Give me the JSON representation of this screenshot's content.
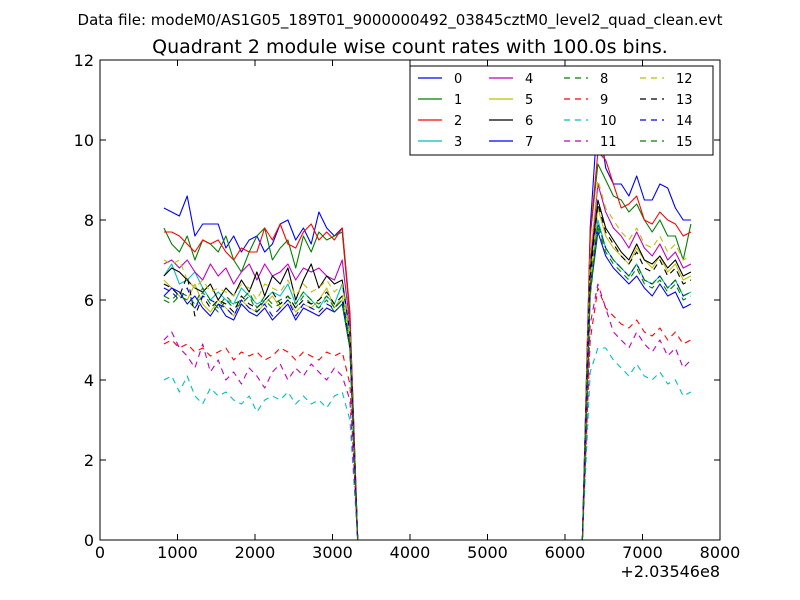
{
  "figure": {
    "supertitle": "Data file: modeM0/AS1G05_189T01_9000000492_03845cztM0_level2_quad_clean.evt"
  },
  "chart_data": {
    "type": "line",
    "title": "Quadrant 2 module wise count rates with 100.0s bins.",
    "xlabel": "",
    "ylabel": "",
    "xlim": [
      0,
      8000
    ],
    "ylim": [
      0,
      12
    ],
    "xticks": [
      0,
      1000,
      2000,
      3000,
      4000,
      5000,
      6000,
      7000,
      8000
    ],
    "xtick_labels": [
      "0",
      "1000",
      "2000",
      "3000",
      "4000",
      "5000",
      "6000",
      "7000",
      "8000"
    ],
    "yticks": [
      0,
      2,
      4,
      6,
      8,
      10,
      12
    ],
    "ytick_labels": [
      "0",
      "2",
      "4",
      "6",
      "8",
      "10",
      "12"
    ],
    "x_offset_label": "+2.03546e8",
    "legend_position": "top-right",
    "x_active_1": [
      825,
      925,
      1025,
      1125,
      1225,
      1325,
      1425,
      1525,
      1625,
      1725,
      1825,
      1925,
      2025,
      2125,
      2225,
      2325,
      2425,
      2525,
      2625,
      2725,
      2825,
      2925,
      3025,
      3125,
      3225,
      3325
    ],
    "x_gap": [
      3425,
      6125
    ],
    "x_active_2": [
      6225,
      6325,
      6425,
      6525,
      6625,
      6725,
      6825,
      6925,
      7025,
      7125,
      7225,
      7325,
      7425,
      7525,
      7625
    ],
    "series": [
      {
        "name": "0",
        "color": "#0000ff",
        "dash": "solid",
        "seg1": [
          8.3,
          8.2,
          8.1,
          8.6,
          7.6,
          7.9,
          7.9,
          7.9,
          7.3,
          7.6,
          7.2,
          7.5,
          7.6,
          7.2,
          7.4,
          7.9,
          8.0,
          7.5,
          7.8,
          7.4,
          8.2,
          7.8,
          7.6,
          7.8,
          5.6,
          0.0
        ],
        "seg2": [
          0.0,
          7.8,
          10.7,
          9.3,
          8.9,
          8.9,
          8.6,
          9.1,
          8.5,
          8.5,
          8.9,
          8.8,
          8.3,
          8.0,
          8.0
        ]
      },
      {
        "name": "1",
        "color": "#008000",
        "dash": "solid",
        "seg1": [
          7.8,
          7.4,
          7.2,
          7.6,
          7.0,
          7.5,
          7.4,
          7.2,
          7.6,
          7.0,
          6.7,
          7.2,
          7.6,
          7.8,
          7.0,
          7.3,
          7.5,
          6.8,
          7.6,
          7.2,
          7.7,
          7.5,
          7.6,
          7.7,
          5.6,
          0.0
        ],
        "seg2": [
          0.0,
          7.6,
          9.4,
          9.0,
          8.6,
          8.5,
          8.2,
          8.4,
          8.0,
          7.7,
          8.0,
          7.6,
          7.6,
          7.0,
          7.9
        ]
      },
      {
        "name": "2",
        "color": "#ff0000",
        "dash": "solid",
        "seg1": [
          7.7,
          7.7,
          7.6,
          7.4,
          7.2,
          7.5,
          7.4,
          7.5,
          7.2,
          7.0,
          7.3,
          7.2,
          7.2,
          7.8,
          7.5,
          7.9,
          7.4,
          7.3,
          7.7,
          7.9,
          7.5,
          7.7,
          7.5,
          7.8,
          5.7,
          0.0
        ],
        "seg2": [
          0.0,
          7.6,
          9.7,
          9.5,
          8.9,
          8.3,
          8.4,
          8.6,
          8.0,
          7.9,
          8.2,
          8.0,
          7.9,
          7.6,
          7.7
        ]
      },
      {
        "name": "3",
        "color": "#00bfbf",
        "dash": "solid",
        "seg1": [
          6.6,
          6.9,
          6.4,
          6.5,
          6.7,
          6.3,
          6.0,
          6.2,
          6.0,
          5.9,
          6.3,
          6.1,
          5.9,
          6.0,
          6.2,
          6.1,
          6.4,
          5.9,
          6.2,
          6.0,
          5.8,
          6.1,
          5.9,
          6.4,
          5.1,
          0.0
        ],
        "seg2": [
          0.0,
          6.5,
          8.0,
          7.3,
          7.0,
          6.8,
          6.6,
          6.9,
          6.5,
          6.4,
          6.6,
          6.3,
          6.5,
          6.1,
          6.2
        ]
      },
      {
        "name": "4",
        "color": "#bf00bf",
        "dash": "solid",
        "seg1": [
          6.9,
          7.0,
          6.8,
          7.0,
          6.7,
          6.5,
          6.9,
          6.6,
          6.8,
          6.4,
          6.7,
          6.9,
          6.5,
          6.9,
          6.6,
          6.7,
          6.9,
          6.5,
          6.8,
          6.7,
          6.8,
          6.6,
          6.5,
          7.0,
          5.4,
          0.0
        ],
        "seg2": [
          0.0,
          6.9,
          8.9,
          8.2,
          7.8,
          7.6,
          7.3,
          7.7,
          7.3,
          7.1,
          7.4,
          7.0,
          7.2,
          6.8,
          6.9
        ]
      },
      {
        "name": "5",
        "color": "#bfbf00",
        "dash": "solid",
        "seg1": [
          6.5,
          6.3,
          6.1,
          6.0,
          6.4,
          5.9,
          5.7,
          6.0,
          5.8,
          5.6,
          6.0,
          5.8,
          5.7,
          5.9,
          6.1,
          5.8,
          6.0,
          5.7,
          5.9,
          5.8,
          6.0,
          6.3,
          5.8,
          6.1,
          4.9,
          0.0
        ],
        "seg2": [
          0.0,
          6.4,
          8.3,
          7.6,
          7.3,
          7.1,
          6.9,
          7.3,
          7.0,
          6.8,
          7.1,
          6.7,
          6.9,
          6.5,
          6.6
        ]
      },
      {
        "name": "6",
        "color": "#000000",
        "dash": "solid",
        "seg1": [
          6.6,
          6.8,
          6.7,
          6.5,
          6.3,
          6.2,
          6.4,
          6.0,
          6.3,
          6.1,
          6.5,
          6.2,
          6.7,
          6.1,
          6.6,
          6.4,
          6.8,
          6.0,
          6.5,
          6.9,
          6.3,
          6.6,
          6.4,
          6.5,
          5.2,
          0.0
        ],
        "seg2": [
          0.0,
          6.8,
          8.5,
          7.8,
          7.5,
          7.2,
          7.0,
          7.4,
          7.0,
          6.9,
          7.1,
          6.8,
          7.0,
          6.6,
          6.7
        ]
      },
      {
        "name": "7",
        "color": "#0000ff",
        "dash": "solid",
        "seg1": [
          6.1,
          6.3,
          6.2,
          5.9,
          6.1,
          5.8,
          5.6,
          5.9,
          5.6,
          5.5,
          5.9,
          5.7,
          5.6,
          5.8,
          5.5,
          5.7,
          5.9,
          5.5,
          5.8,
          5.7,
          5.6,
          5.8,
          5.7,
          5.9,
          4.8,
          0.0
        ],
        "seg2": [
          0.0,
          6.2,
          7.7,
          7.1,
          6.8,
          6.6,
          6.4,
          6.6,
          6.3,
          6.1,
          6.4,
          6.1,
          6.2,
          5.8,
          5.9
        ]
      },
      {
        "name": "8",
        "color": "#008000",
        "dash": "dash",
        "seg1": [
          6.0,
          5.9,
          6.1,
          6.0,
          5.8,
          6.2,
          5.9,
          5.7,
          6.0,
          5.8,
          5.9,
          6.1,
          5.7,
          6.0,
          5.8,
          5.9,
          6.0,
          5.8,
          6.1,
          5.9,
          5.8,
          6.0,
          5.7,
          5.9,
          4.8,
          0.0
        ],
        "seg2": [
          0.0,
          6.1,
          7.8,
          7.2,
          6.9,
          6.7,
          6.5,
          6.8,
          6.4,
          6.3,
          6.5,
          6.2,
          6.4,
          6.0,
          6.1
        ]
      },
      {
        "name": "9",
        "color": "#ff0000",
        "dash": "dash",
        "seg1": [
          4.9,
          5.0,
          4.8,
          4.9,
          4.7,
          4.8,
          4.6,
          4.7,
          4.8,
          4.5,
          4.7,
          4.6,
          4.7,
          4.5,
          4.6,
          4.8,
          4.7,
          4.5,
          4.7,
          4.6,
          4.5,
          4.7,
          4.6,
          4.7,
          3.9,
          0.0
        ],
        "seg2": [
          0.0,
          5.0,
          6.3,
          5.8,
          5.6,
          5.4,
          5.3,
          5.5,
          5.2,
          5.1,
          5.3,
          5.0,
          5.2,
          4.9,
          5.0
        ]
      },
      {
        "name": "10",
        "color": "#00bfbf",
        "dash": "dash",
        "seg1": [
          4.0,
          4.1,
          3.7,
          4.1,
          3.6,
          3.4,
          3.8,
          3.6,
          3.7,
          3.5,
          3.4,
          3.6,
          3.2,
          3.5,
          3.6,
          3.5,
          3.7,
          3.4,
          3.6,
          3.4,
          3.5,
          3.3,
          3.6,
          3.7,
          3.0,
          0.0
        ],
        "seg2": [
          0.0,
          4.2,
          4.8,
          4.8,
          4.5,
          4.3,
          4.1,
          4.4,
          4.1,
          4.0,
          4.2,
          3.9,
          4.0,
          3.6,
          3.7
        ]
      },
      {
        "name": "11",
        "color": "#bf00bf",
        "dash": "dash",
        "seg1": [
          5.0,
          5.2,
          4.8,
          4.6,
          4.3,
          4.9,
          4.2,
          4.5,
          4.0,
          4.2,
          3.9,
          4.3,
          4.1,
          3.8,
          4.2,
          4.4,
          4.0,
          4.3,
          4.1,
          4.4,
          4.2,
          4.0,
          4.3,
          4.1,
          3.5,
          0.0
        ],
        "seg2": [
          0.0,
          5.4,
          6.4,
          5.8,
          5.2,
          5.0,
          4.8,
          5.2,
          4.9,
          4.7,
          5.0,
          4.6,
          4.8,
          4.3,
          4.5
        ]
      },
      {
        "name": "12",
        "color": "#bfbf00",
        "dash": "dash",
        "seg1": [
          7.0,
          6.9,
          7.0,
          6.5,
          6.3,
          6.5,
          6.2,
          6.3,
          6.2,
          6.1,
          6.4,
          6.3,
          6.0,
          6.4,
          6.3,
          6.2,
          6.5,
          6.1,
          6.4,
          6.2,
          6.3,
          6.5,
          6.2,
          6.4,
          5.2,
          0.0
        ],
        "seg2": [
          0.0,
          7.1,
          9.0,
          8.3,
          8.0,
          7.7,
          7.5,
          7.8,
          7.4,
          7.3,
          7.6,
          7.2,
          7.4,
          7.0,
          7.1
        ]
      },
      {
        "name": "13",
        "color": "#000000",
        "dash": "dash",
        "seg1": [
          6.4,
          6.3,
          6.1,
          6.6,
          5.6,
          6.1,
          5.8,
          6.0,
          5.9,
          5.7,
          6.1,
          5.9,
          5.8,
          6.0,
          6.2,
          5.9,
          6.1,
          5.8,
          6.0,
          5.9,
          6.0,
          6.2,
          5.9,
          6.1,
          4.9,
          0.0
        ],
        "seg2": [
          0.0,
          6.6,
          8.4,
          7.7,
          7.4,
          7.1,
          6.9,
          7.2,
          6.8,
          6.7,
          7.0,
          6.6,
          6.8,
          6.4,
          6.5
        ]
      },
      {
        "name": "14",
        "color": "#0000ff",
        "dash": "dash",
        "seg1": [
          6.3,
          6.2,
          6.0,
          6.3,
          5.8,
          6.1,
          6.0,
          5.9,
          5.8,
          5.6,
          6.0,
          5.8,
          5.7,
          5.9,
          5.6,
          5.8,
          6.0,
          5.6,
          5.9,
          5.8,
          5.7,
          5.9,
          5.8,
          6.0,
          4.8,
          0.0
        ],
        "seg2": [
          0.0,
          6.3,
          7.9,
          7.3,
          7.0,
          6.8,
          6.6,
          6.9,
          6.5,
          6.4,
          6.6,
          6.3,
          6.5,
          6.1,
          6.2
        ]
      },
      {
        "name": "15",
        "color": "#008000",
        "dash": "dash",
        "seg1": [
          6.1,
          6.0,
          6.2,
          6.1,
          5.9,
          6.3,
          6.0,
          5.8,
          6.1,
          5.9,
          6.0,
          6.2,
          5.8,
          6.1,
          5.9,
          6.0,
          6.1,
          5.9,
          6.2,
          6.0,
          5.9,
          6.1,
          5.8,
          6.0,
          4.9,
          0.0
        ],
        "seg2": [
          0.0,
          6.2,
          7.9,
          7.3,
          7.0,
          6.8,
          6.6,
          6.9,
          6.5,
          6.4,
          6.6,
          6.3,
          6.5,
          6.1,
          6.2
        ]
      }
    ]
  }
}
